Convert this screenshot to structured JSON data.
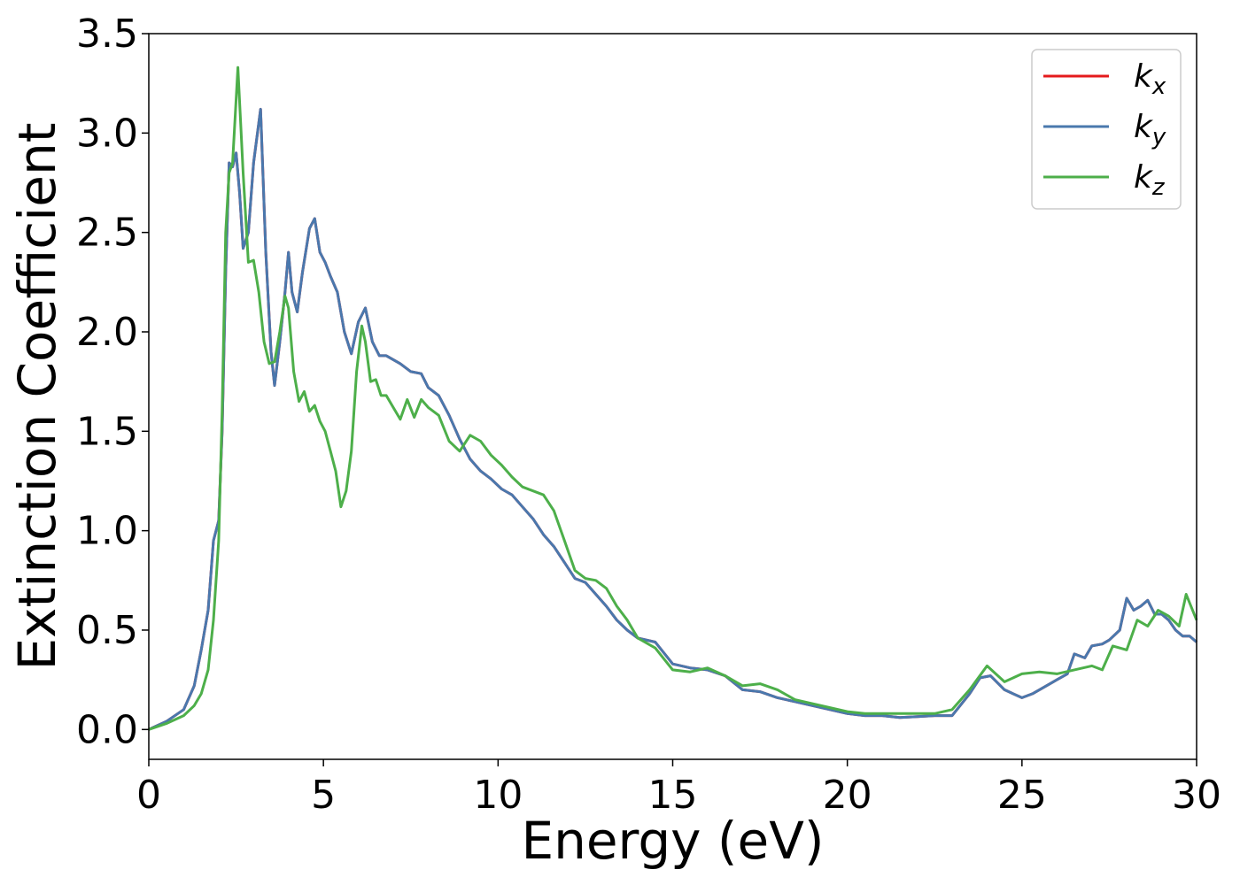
{
  "chart_data": {
    "type": "line",
    "title": "",
    "xlabel": "Energy (eV)",
    "ylabel": "Extinction Coefficient",
    "xlim": [
      0,
      30
    ],
    "ylim": [
      -0.15,
      3.5
    ],
    "xticks": [
      0,
      5,
      10,
      15,
      20,
      25,
      30
    ],
    "xtick_labels": [
      "0",
      "5",
      "10",
      "15",
      "20",
      "25",
      "30"
    ],
    "yticks": [
      0.0,
      0.5,
      1.0,
      1.5,
      2.0,
      2.5,
      3.0,
      3.5
    ],
    "ytick_labels": [
      "0.0",
      "0.5",
      "1.0",
      "1.5",
      "2.0",
      "2.5",
      "3.0",
      "3.5"
    ],
    "grid": false,
    "legend_position": "top-right",
    "series": [
      {
        "name": "k",
        "sub": "x",
        "color": "#e41a1c",
        "hidden_under": "ky",
        "x": [
          0,
          0.5,
          1.0,
          1.3,
          1.5,
          1.7,
          1.85,
          2.0,
          2.1,
          2.2,
          2.3,
          2.4,
          2.5,
          2.6,
          2.7,
          2.85,
          3.0,
          3.2,
          3.35,
          3.5,
          3.6,
          3.75,
          3.9,
          4.0,
          4.1,
          4.25,
          4.4,
          4.6,
          4.75,
          4.9,
          5.05,
          5.2,
          5.4,
          5.6,
          5.8,
          6.0,
          6.2,
          6.4,
          6.6,
          6.8,
          7.0,
          7.2,
          7.5,
          7.8,
          8.0,
          8.3,
          8.6,
          8.9,
          9.2,
          9.5,
          9.8,
          10.1,
          10.4,
          10.7,
          11.0,
          11.3,
          11.6,
          11.9,
          12.2,
          12.5,
          12.8,
          13.1,
          13.4,
          13.7,
          14.0,
          14.5,
          15.0,
          15.5,
          16.0,
          16.5,
          17.0,
          17.5,
          18.0,
          18.5,
          19.0,
          19.5,
          20.0,
          20.5,
          21.0,
          21.5,
          22.0,
          22.5,
          23.0,
          23.5,
          23.8,
          24.1,
          24.5,
          25.0,
          25.3,
          25.7,
          26.0,
          26.3,
          26.5,
          26.8,
          27.0,
          27.3,
          27.5,
          27.8,
          28.0,
          28.2,
          28.4,
          28.6,
          28.8,
          29.0,
          29.2,
          29.4,
          29.6,
          29.8,
          30.0
        ],
        "values": [
          0.0,
          0.04,
          0.1,
          0.22,
          0.4,
          0.6,
          0.95,
          1.05,
          1.5,
          2.3,
          2.85,
          2.83,
          2.9,
          2.7,
          2.42,
          2.5,
          2.85,
          3.12,
          2.4,
          1.9,
          1.73,
          1.95,
          2.2,
          2.4,
          2.2,
          2.1,
          2.3,
          2.52,
          2.57,
          2.4,
          2.35,
          2.28,
          2.2,
          2.0,
          1.89,
          2.05,
          2.12,
          1.95,
          1.88,
          1.88,
          1.86,
          1.84,
          1.8,
          1.79,
          1.72,
          1.68,
          1.58,
          1.46,
          1.36,
          1.3,
          1.26,
          1.21,
          1.18,
          1.12,
          1.06,
          0.98,
          0.92,
          0.84,
          0.76,
          0.74,
          0.68,
          0.62,
          0.55,
          0.5,
          0.46,
          0.44,
          0.33,
          0.31,
          0.3,
          0.27,
          0.2,
          0.19,
          0.16,
          0.14,
          0.12,
          0.1,
          0.08,
          0.07,
          0.07,
          0.06,
          0.065,
          0.07,
          0.07,
          0.18,
          0.26,
          0.27,
          0.2,
          0.16,
          0.18,
          0.22,
          0.25,
          0.28,
          0.38,
          0.36,
          0.42,
          0.43,
          0.45,
          0.5,
          0.66,
          0.6,
          0.62,
          0.65,
          0.58,
          0.58,
          0.55,
          0.5,
          0.47,
          0.47,
          0.44
        ]
      },
      {
        "name": "k",
        "sub": "y",
        "color": "#4a78ad",
        "x": [
          0,
          0.5,
          1.0,
          1.3,
          1.5,
          1.7,
          1.85,
          2.0,
          2.1,
          2.2,
          2.3,
          2.4,
          2.5,
          2.6,
          2.7,
          2.85,
          3.0,
          3.2,
          3.35,
          3.5,
          3.6,
          3.75,
          3.9,
          4.0,
          4.1,
          4.25,
          4.4,
          4.6,
          4.75,
          4.9,
          5.05,
          5.2,
          5.4,
          5.6,
          5.8,
          6.0,
          6.2,
          6.4,
          6.6,
          6.8,
          7.0,
          7.2,
          7.5,
          7.8,
          8.0,
          8.3,
          8.6,
          8.9,
          9.2,
          9.5,
          9.8,
          10.1,
          10.4,
          10.7,
          11.0,
          11.3,
          11.6,
          11.9,
          12.2,
          12.5,
          12.8,
          13.1,
          13.4,
          13.7,
          14.0,
          14.5,
          15.0,
          15.5,
          16.0,
          16.5,
          17.0,
          17.5,
          18.0,
          18.5,
          19.0,
          19.5,
          20.0,
          20.5,
          21.0,
          21.5,
          22.0,
          22.5,
          23.0,
          23.5,
          23.8,
          24.1,
          24.5,
          25.0,
          25.3,
          25.7,
          26.0,
          26.3,
          26.5,
          26.8,
          27.0,
          27.3,
          27.5,
          27.8,
          28.0,
          28.2,
          28.4,
          28.6,
          28.8,
          29.0,
          29.2,
          29.4,
          29.6,
          29.8,
          30.0
        ],
        "values": [
          0.0,
          0.04,
          0.1,
          0.22,
          0.4,
          0.6,
          0.95,
          1.05,
          1.5,
          2.3,
          2.85,
          2.83,
          2.9,
          2.7,
          2.42,
          2.5,
          2.85,
          3.12,
          2.4,
          1.9,
          1.73,
          1.95,
          2.2,
          2.4,
          2.2,
          2.1,
          2.3,
          2.52,
          2.57,
          2.4,
          2.35,
          2.28,
          2.2,
          2.0,
          1.89,
          2.05,
          2.12,
          1.95,
          1.88,
          1.88,
          1.86,
          1.84,
          1.8,
          1.79,
          1.72,
          1.68,
          1.58,
          1.46,
          1.36,
          1.3,
          1.26,
          1.21,
          1.18,
          1.12,
          1.06,
          0.98,
          0.92,
          0.84,
          0.76,
          0.74,
          0.68,
          0.62,
          0.55,
          0.5,
          0.46,
          0.44,
          0.33,
          0.31,
          0.3,
          0.27,
          0.2,
          0.19,
          0.16,
          0.14,
          0.12,
          0.1,
          0.08,
          0.07,
          0.07,
          0.06,
          0.065,
          0.07,
          0.07,
          0.18,
          0.26,
          0.27,
          0.2,
          0.16,
          0.18,
          0.22,
          0.25,
          0.28,
          0.38,
          0.36,
          0.42,
          0.43,
          0.45,
          0.5,
          0.66,
          0.6,
          0.62,
          0.65,
          0.58,
          0.58,
          0.55,
          0.5,
          0.47,
          0.47,
          0.44
        ]
      },
      {
        "name": "k",
        "sub": "z",
        "color": "#4daf4a",
        "x": [
          0,
          0.5,
          1.0,
          1.3,
          1.5,
          1.7,
          1.85,
          2.0,
          2.1,
          2.2,
          2.3,
          2.4,
          2.55,
          2.7,
          2.85,
          3.0,
          3.15,
          3.3,
          3.45,
          3.6,
          3.75,
          3.9,
          4.0,
          4.15,
          4.3,
          4.45,
          4.6,
          4.75,
          4.9,
          5.05,
          5.2,
          5.35,
          5.5,
          5.65,
          5.8,
          5.95,
          6.1,
          6.2,
          6.35,
          6.5,
          6.65,
          6.8,
          7.0,
          7.2,
          7.4,
          7.6,
          7.8,
          8.0,
          8.3,
          8.6,
          8.9,
          9.2,
          9.5,
          9.8,
          10.1,
          10.4,
          10.7,
          11.0,
          11.3,
          11.6,
          11.9,
          12.2,
          12.5,
          12.8,
          13.1,
          13.4,
          13.7,
          14.0,
          14.5,
          15.0,
          15.5,
          16.0,
          16.5,
          17.0,
          17.5,
          18.0,
          18.5,
          19.0,
          19.5,
          20.0,
          20.5,
          21.0,
          21.5,
          22.0,
          22.5,
          23.0,
          23.5,
          24.0,
          24.5,
          25.0,
          25.5,
          26.0,
          26.5,
          27.0,
          27.3,
          27.6,
          28.0,
          28.3,
          28.6,
          28.9,
          29.2,
          29.5,
          29.7,
          30.0
        ],
        "values": [
          0.0,
          0.03,
          0.07,
          0.12,
          0.18,
          0.3,
          0.55,
          0.95,
          1.6,
          2.5,
          2.8,
          2.85,
          3.33,
          2.8,
          2.35,
          2.36,
          2.2,
          1.95,
          1.84,
          1.85,
          2.0,
          2.18,
          2.12,
          1.8,
          1.65,
          1.7,
          1.6,
          1.63,
          1.55,
          1.5,
          1.4,
          1.3,
          1.12,
          1.2,
          1.4,
          1.8,
          2.03,
          1.95,
          1.75,
          1.76,
          1.68,
          1.68,
          1.62,
          1.56,
          1.66,
          1.57,
          1.66,
          1.62,
          1.58,
          1.45,
          1.4,
          1.48,
          1.45,
          1.38,
          1.33,
          1.27,
          1.22,
          1.2,
          1.18,
          1.1,
          0.95,
          0.8,
          0.76,
          0.75,
          0.71,
          0.62,
          0.55,
          0.46,
          0.41,
          0.3,
          0.29,
          0.31,
          0.27,
          0.22,
          0.23,
          0.2,
          0.15,
          0.13,
          0.11,
          0.09,
          0.08,
          0.08,
          0.08,
          0.08,
          0.08,
          0.1,
          0.2,
          0.32,
          0.24,
          0.28,
          0.29,
          0.28,
          0.3,
          0.32,
          0.3,
          0.42,
          0.4,
          0.55,
          0.52,
          0.6,
          0.57,
          0.52,
          0.68,
          0.55
        ]
      }
    ]
  }
}
